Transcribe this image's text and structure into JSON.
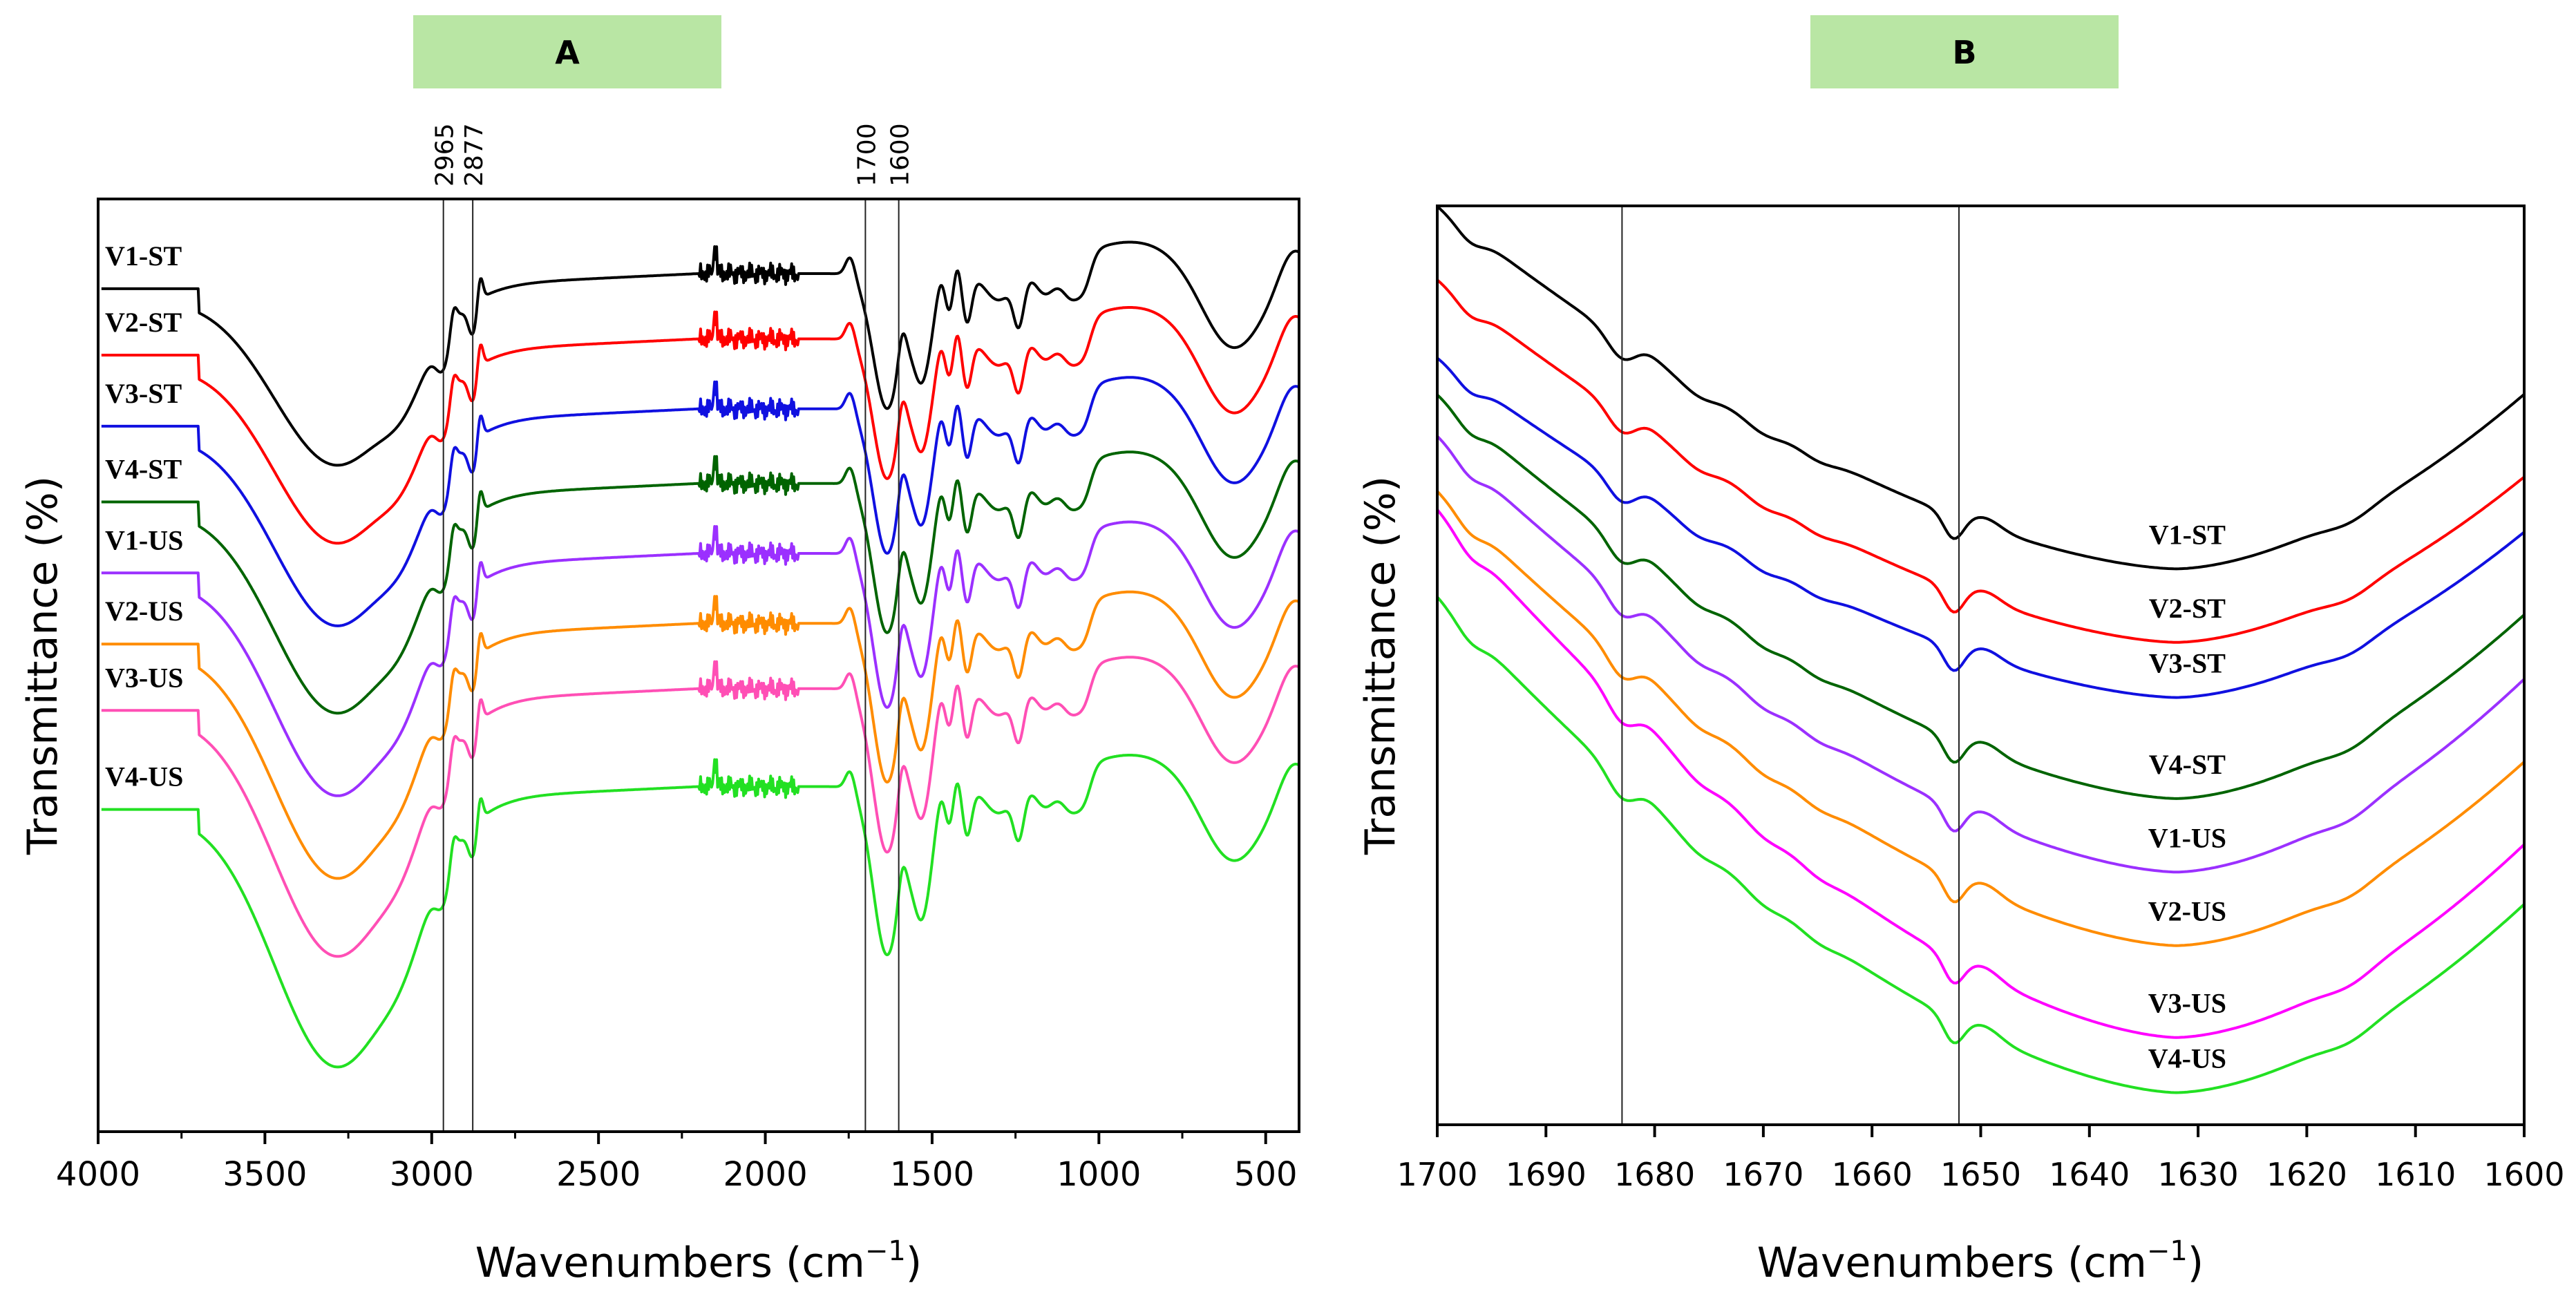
{
  "figure": {
    "panel_a_label": "A",
    "panel_b_label": "B",
    "panel_label_bg": "#b9e6a4"
  },
  "chart_data": [
    {
      "type": "line",
      "panel": "A",
      "title": "A",
      "xlabel": "Wavenumbers (cm",
      "xlabel_sup": "−1",
      "xlabel_tail": ")",
      "ylabel": "Transmittance (%)",
      "xlim": [
        4000,
        400
      ],
      "ylim": [
        0,
        100
      ],
      "xticks": [
        4000,
        3500,
        3000,
        2500,
        2000,
        1500,
        1000,
        500
      ],
      "xtick_labels": [
        "4000",
        "3500",
        "3000",
        "2500",
        "2000",
        "1500",
        "1000",
        "500"
      ],
      "reference_lines": [
        2965,
        2877,
        1700,
        1600
      ],
      "reference_labels": [
        "2965",
        "2877",
        "1700",
        "1600"
      ],
      "series": [
        {
          "name": "V1-ST",
          "color": "#000000",
          "offset": 92.0
        },
        {
          "name": "V2-ST",
          "color": "#ff0000",
          "offset": 85.0
        },
        {
          "name": "V3-ST",
          "color": "#1010e0",
          "offset": 77.5
        },
        {
          "name": "V4-ST",
          "color": "#006400",
          "offset": 69.5
        },
        {
          "name": "V1-US",
          "color": "#9b30ff",
          "offset": 62.0
        },
        {
          "name": "V2-US",
          "color": "#ff8c00",
          "offset": 54.5
        },
        {
          "name": "V3-US",
          "color": "#ff4fb5",
          "offset": 47.5
        },
        {
          "name": "V4-US",
          "color": "#22e022",
          "offset": 37.0
        }
      ],
      "legend": "left-labels"
    },
    {
      "type": "line",
      "panel": "B",
      "title": "B",
      "xlabel": "Wavenumbers (cm",
      "xlabel_sup": "−1",
      "xlabel_tail": ")",
      "ylabel": "Transmittance (%)",
      "xlim": [
        1700,
        1600
      ],
      "ylim": [
        0,
        100
      ],
      "xticks": [
        1700,
        1690,
        1680,
        1670,
        1660,
        1650,
        1640,
        1630,
        1620,
        1610,
        1600
      ],
      "xtick_labels": [
        "1700",
        "1690",
        "1680",
        "1670",
        "1660",
        "1650",
        "1640",
        "1630",
        "1620",
        "1610",
        "1600"
      ],
      "reference_lines": [
        1683,
        1652
      ],
      "series": [
        {
          "name": "V1-ST",
          "color": "#000000",
          "start": 100,
          "min": 60.5,
          "end": 79.5
        },
        {
          "name": "V2-ST",
          "color": "#ff0000",
          "start": 92,
          "min": 52.5,
          "end": 70.5
        },
        {
          "name": "V3-ST",
          "color": "#1010e0",
          "start": 83.5,
          "min": 46.5,
          "end": 64.5
        },
        {
          "name": "V4-ST",
          "color": "#006400",
          "start": 79.5,
          "min": 35.5,
          "end": 55.5
        },
        {
          "name": "V1-US",
          "color": "#9b30ff",
          "start": 75,
          "min": 27.5,
          "end": 48.5
        },
        {
          "name": "V2-US",
          "color": "#ff8c00",
          "start": 69,
          "min": 19.5,
          "end": 39.5
        },
        {
          "name": "V3-US",
          "color": "#ff00ff",
          "start": 67,
          "min": 9.5,
          "end": 30.5
        },
        {
          "name": "V4-US",
          "color": "#22e022",
          "start": 57.5,
          "min": 3.5,
          "end": 24
        }
      ],
      "label_positions_note": "labels placed near curve minima",
      "legend": "inline-labels"
    }
  ]
}
